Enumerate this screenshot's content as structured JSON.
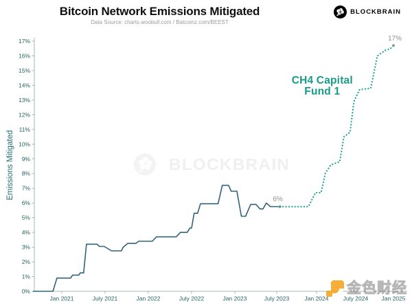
{
  "header": {
    "title": "Bitcoin Network Emissions Mitigated",
    "subtitle": "Data Source: charts.woobull.com / Batcoinz.com/BEEST"
  },
  "brand": {
    "name": "BLOCKBRAIN"
  },
  "watermark": {
    "brand": "BLOCKBRAIN",
    "site_text": "金色财经"
  },
  "colors": {
    "actual_line": "#30627a",
    "projection_line": "#19a28d",
    "accent_green": "#189b86",
    "axis": "#a9b6b6",
    "tick_text": "#276062",
    "note_text": "#8c9292",
    "jinse_orange": "#f5a623"
  },
  "chart_data": {
    "type": "line",
    "title": "Bitcoin Network Emissions Mitigated",
    "xlabel": "",
    "ylabel": "Emissions Mitigated",
    "ylim": [
      0,
      17
    ],
    "xlim": [
      "2020-09",
      "2025-01"
    ],
    "grid": false,
    "legend_position": "none",
    "y_tick_labels": [
      "0%",
      "1%",
      "2%",
      "3%",
      "4%",
      "5%",
      "6%",
      "7%",
      "8%",
      "9%",
      "10%",
      "11%",
      "12%",
      "13%",
      "14%",
      "15%",
      "16%",
      "17%"
    ],
    "x_tick_labels": [
      "Jan 2021",
      "July 2021",
      "Jan 2022",
      "July 2022",
      "Jan 2023",
      "July 2023",
      "Jan 2024",
      "July 2024",
      "Jan 2025"
    ],
    "series": [
      {
        "name": "actual",
        "style": "solid",
        "color": "#30627a",
        "points": [
          [
            "2020-09-01",
            0
          ],
          [
            "2020-11-25",
            0
          ],
          [
            "2020-12-11",
            0.9
          ],
          [
            "2021-02-08",
            0.9
          ],
          [
            "2021-02-16",
            1.1
          ],
          [
            "2021-03-12",
            1.1
          ],
          [
            "2021-03-18",
            1.25
          ],
          [
            "2021-04-02",
            1.25
          ],
          [
            "2021-04-14",
            3.2
          ],
          [
            "2021-05-29",
            3.2
          ],
          [
            "2021-06-07",
            3.05
          ],
          [
            "2021-06-28",
            3.05
          ],
          [
            "2021-07-29",
            2.75
          ],
          [
            "2021-09-09",
            2.75
          ],
          [
            "2021-09-17",
            3.0
          ],
          [
            "2021-10-05",
            3.25
          ],
          [
            "2021-11-09",
            3.25
          ],
          [
            "2021-11-21",
            3.4
          ],
          [
            "2022-01-18",
            3.4
          ],
          [
            "2022-02-05",
            3.7
          ],
          [
            "2022-04-28",
            3.7
          ],
          [
            "2022-05-15",
            4.0
          ],
          [
            "2022-06-13",
            4.0
          ],
          [
            "2022-06-25",
            4.3
          ],
          [
            "2022-07-01",
            4.3
          ],
          [
            "2022-07-12",
            5.3
          ],
          [
            "2022-07-27",
            5.3
          ],
          [
            "2022-08-08",
            5.95
          ],
          [
            "2022-10-22",
            5.95
          ],
          [
            "2022-11-09",
            7.2
          ],
          [
            "2022-12-05",
            7.2
          ],
          [
            "2022-12-16",
            6.8
          ],
          [
            "2023-01-10",
            6.8
          ],
          [
            "2023-01-30",
            5.1
          ],
          [
            "2023-02-18",
            5.1
          ],
          [
            "2023-03-09",
            5.9
          ],
          [
            "2023-04-02",
            5.9
          ],
          [
            "2023-04-20",
            5.6
          ],
          [
            "2023-05-02",
            5.6
          ],
          [
            "2023-05-17",
            6.0
          ],
          [
            "2023-06-04",
            5.75
          ],
          [
            "2023-07-16",
            5.75
          ]
        ]
      },
      {
        "name": "projection (CH4 Capital Fund 1)",
        "style": "dotted",
        "color": "#19a28d",
        "points": [
          [
            "2023-07-16",
            5.75
          ],
          [
            "2023-11-25",
            5.75
          ],
          [
            "2023-12-27",
            6.7
          ],
          [
            "2024-01-23",
            6.7
          ],
          [
            "2024-02-11",
            8.0
          ],
          [
            "2024-03-07",
            8.6
          ],
          [
            "2024-04-18",
            8.8
          ],
          [
            "2024-05-07",
            10.5
          ],
          [
            "2024-06-05",
            10.8
          ],
          [
            "2024-06-24",
            12.9
          ],
          [
            "2024-07-20",
            13.7
          ],
          [
            "2024-09-13",
            13.8
          ],
          [
            "2024-10-15",
            16.0
          ],
          [
            "2024-11-25",
            16.4
          ],
          [
            "2024-12-14",
            16.45
          ],
          [
            "2025-01-01",
            16.7
          ]
        ]
      }
    ],
    "annotations": [
      {
        "id": "current-value",
        "text": "6%",
        "date": "2023-07-16",
        "value": 5.75
      },
      {
        "id": "target-value",
        "text": "17%",
        "date": "2025-01-01",
        "value": 16.7
      },
      {
        "id": "fund-label",
        "lines": [
          "CH4 Capital",
          "Fund 1"
        ],
        "date": "2024-01-15",
        "value": 14.2
      }
    ]
  }
}
